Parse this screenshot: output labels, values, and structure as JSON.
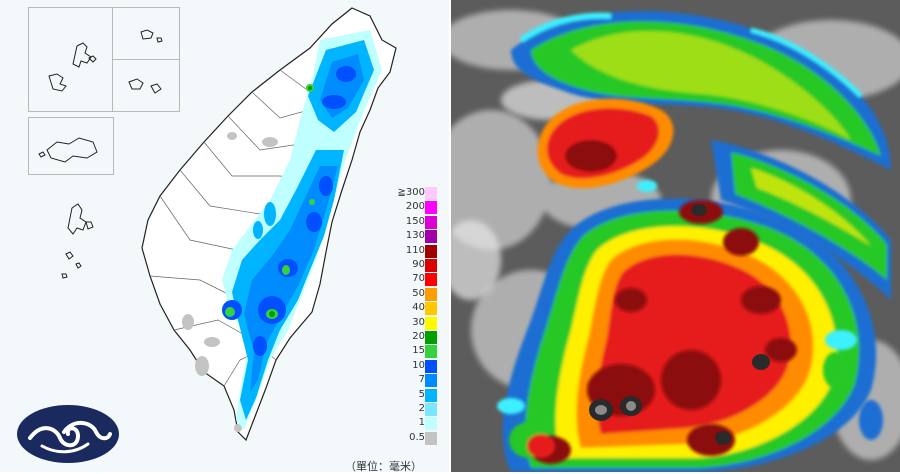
{
  "rainfall_map": {
    "legend": {
      "items": [
        {
          "label": "≧300",
          "color": "#ffc8ff"
        },
        {
          "label": "200",
          "color": "#ff00ff"
        },
        {
          "label": "150",
          "color": "#dc00d4"
        },
        {
          "label": "130",
          "color": "#a000a8"
        },
        {
          "label": "110",
          "color": "#a00000"
        },
        {
          "label": "90",
          "color": "#d80000"
        },
        {
          "label": "70",
          "color": "#ff0000"
        },
        {
          "label": "50",
          "color": "#ff9c00"
        },
        {
          "label": "40",
          "color": "#ffc800"
        },
        {
          "label": "30",
          "color": "#fffa00"
        },
        {
          "label": "20",
          "color": "#00a000"
        },
        {
          "label": "15",
          "color": "#36d23c"
        },
        {
          "label": "10",
          "color": "#0050ff"
        },
        {
          "label": "7",
          "color": "#008cff"
        },
        {
          "label": "5",
          "color": "#00b4ff"
        },
        {
          "label": "2",
          "color": "#7ae6ff"
        },
        {
          "label": "1",
          "color": "#bfffff"
        },
        {
          "label": "0.5",
          "color": "#c3c3c3"
        }
      ],
      "units": "（單位：毫米）"
    },
    "logo_icon": "cwa-cloud-logo-icon",
    "logo_color": "#1a2a5e"
  },
  "satellite_image": {
    "description_icon": "satellite-infrared-icon",
    "palette": {
      "background": "#5c5c5c",
      "cloud_gray": "#c8c8c8",
      "cyan": "#3cf0ff",
      "blue": "#1e6ed2",
      "green": "#28c828",
      "yellow": "#fff000",
      "orange": "#ff8c00",
      "red": "#e61e1e",
      "dark_red": "#8c0a0a",
      "black": "#2a2a2a"
    }
  }
}
